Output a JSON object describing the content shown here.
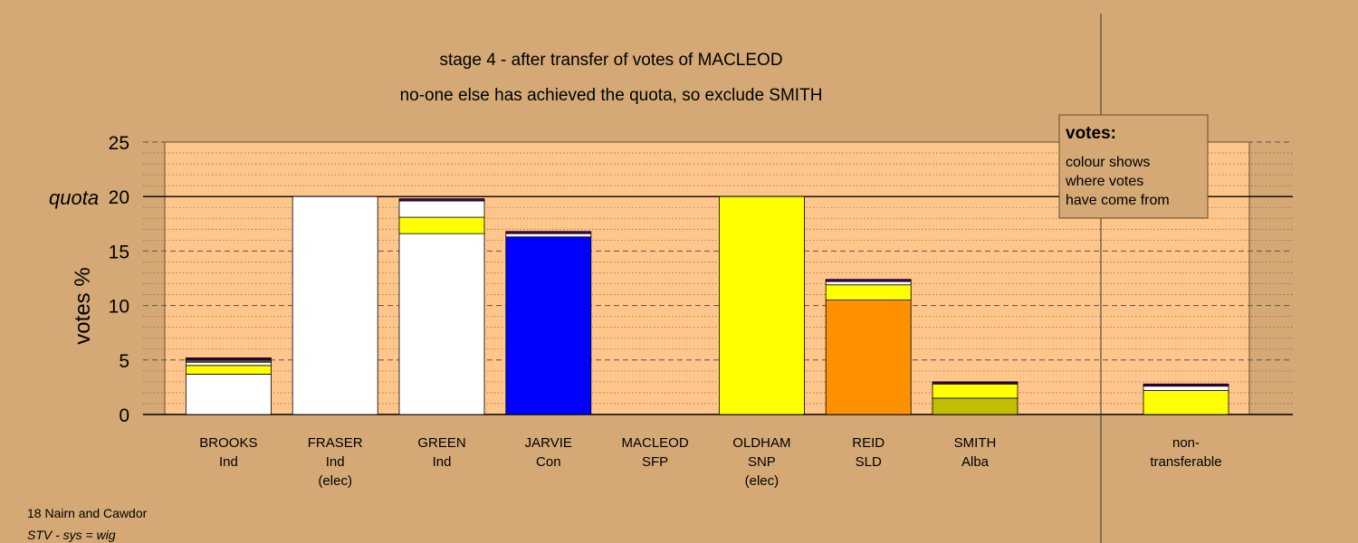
{
  "chart_data": {
    "type": "bar",
    "stacked": true,
    "title": "stage 4 - after transfer of votes of MACLEOD",
    "subtitle": "no-one else has achieved the quota, so exclude SMITH",
    "ylabel": "votes %",
    "ylim": [
      0,
      25
    ],
    "yticks": [
      "0",
      "5",
      "10",
      "15",
      "20",
      "25"
    ],
    "quota": {
      "label": "quota",
      "value": 20
    },
    "grid": true,
    "categories": [
      {
        "name": "BROOKS",
        "party": "Ind",
        "status": ""
      },
      {
        "name": "FRASER",
        "party": "Ind",
        "status": "(elec)"
      },
      {
        "name": "GREEN",
        "party": "Ind",
        "status": ""
      },
      {
        "name": "JARVIE",
        "party": "Con",
        "status": ""
      },
      {
        "name": "MACLEOD",
        "party": "SFP",
        "status": ""
      },
      {
        "name": "OLDHAM",
        "party": "SNP",
        "status": "(elec)"
      },
      {
        "name": "REID",
        "party": "SLD",
        "status": ""
      },
      {
        "name": "SMITH",
        "party": "Alba",
        "status": ""
      }
    ],
    "nontransferable": {
      "label_line1": "non-",
      "label_line2": "transferable"
    },
    "series_colors": {
      "Ind": "#ffffff",
      "Con": "#0000ff",
      "SNP": "#ffff00",
      "SLD": "#ff9100",
      "Alba": "#c0c000",
      "SFP": "#440066"
    },
    "stacks": [
      [
        {
          "from": "Ind",
          "value": 3.7
        },
        {
          "from": "SNP",
          "value": 0.8
        },
        {
          "from": "Ind",
          "value": 0.3
        },
        {
          "from": "SNP",
          "value": 0.1
        },
        {
          "from": "Ind",
          "value": 0.1
        },
        {
          "from": "SFP",
          "value": 0.2
        }
      ],
      [
        {
          "from": "Ind",
          "value": 20.0
        }
      ],
      [
        {
          "from": "Ind",
          "value": 16.6
        },
        {
          "from": "SNP",
          "value": 1.5
        },
        {
          "from": "Ind",
          "value": 1.5
        },
        {
          "from": "SFP",
          "value": 0.2
        }
      ],
      [
        {
          "from": "Con",
          "value": 16.3
        },
        {
          "from": "Ind",
          "value": 0.3
        },
        {
          "from": "SFP",
          "value": 0.2
        }
      ],
      [],
      [
        {
          "from": "SNP",
          "value": 20.0
        }
      ],
      [
        {
          "from": "SLD",
          "value": 10.5
        },
        {
          "from": "SNP",
          "value": 1.4
        },
        {
          "from": "Ind",
          "value": 0.3
        },
        {
          "from": "SFP",
          "value": 0.2
        }
      ],
      [
        {
          "from": "Alba",
          "value": 1.5
        },
        {
          "from": "SNP",
          "value": 1.3
        },
        {
          "from": "SFP",
          "value": 0.2
        }
      ]
    ],
    "nontransferable_stack": [
      {
        "from": "SNP",
        "value": 2.2
      },
      {
        "from": "Ind",
        "value": 0.4
      },
      {
        "from": "SFP",
        "value": 0.2
      }
    ]
  },
  "legend": {
    "title": "votes:",
    "lines": [
      "colour shows",
      "where votes",
      "have come from"
    ]
  },
  "footer": {
    "ward": "18 Nairn and Cawdor",
    "system": "STV - sys = wig"
  }
}
